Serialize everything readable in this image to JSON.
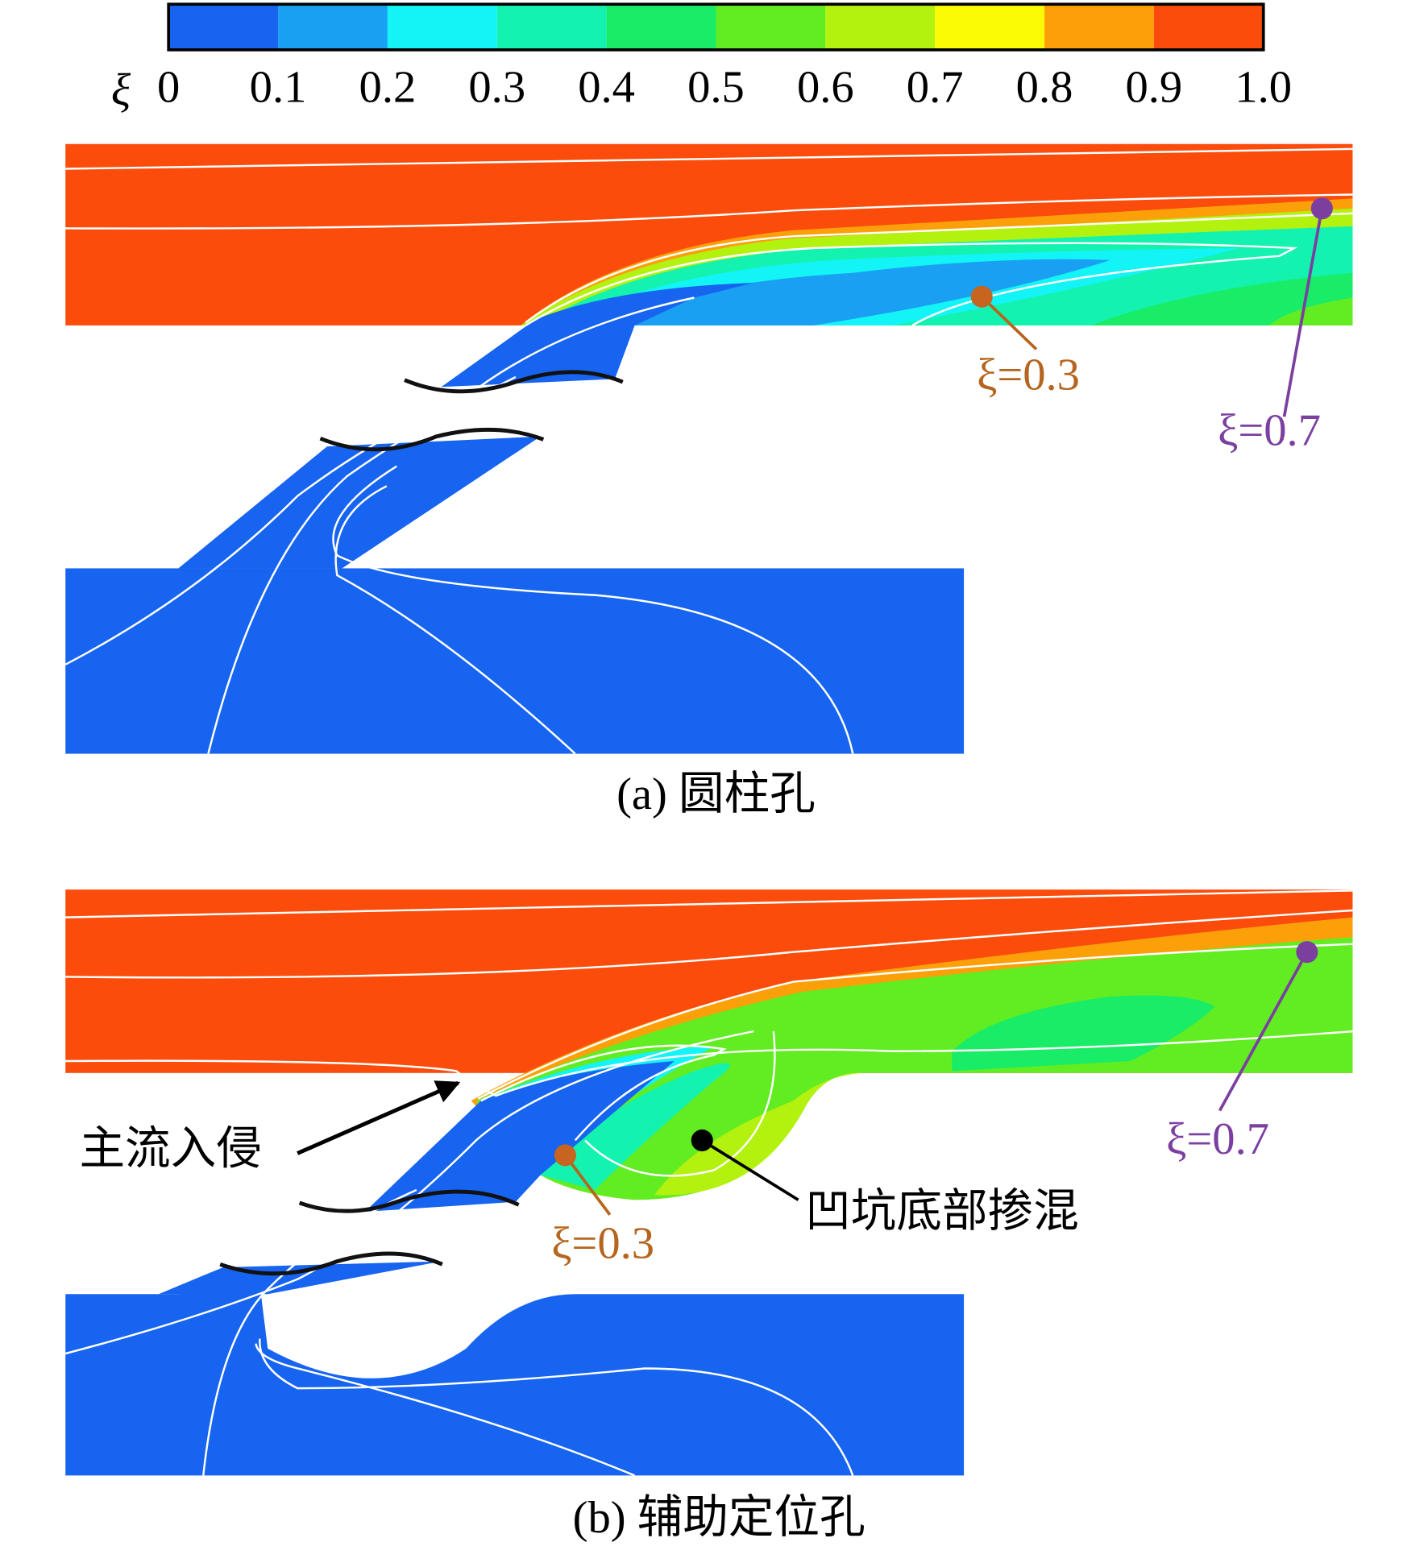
{
  "colorbar": {
    "symbol": "ξ",
    "ticks": [
      0,
      0.1,
      0.2,
      0.3,
      0.4,
      0.5,
      0.6,
      0.7,
      0.8,
      0.9,
      {
        "value": 1,
        "label": "1.0"
      }
    ],
    "colors": [
      "#1764f0",
      "#1aa0f2",
      "#13f4f6",
      "#14f2b0",
      "#19ec66",
      "#62ec22",
      "#b2f20e",
      "#fbfb06",
      "#fca00a",
      "#fc4c0c"
    ]
  },
  "panels": [
    {
      "caption": "(a) 圆柱孔",
      "annotations": {
        "contour_low": "ξ=0.3",
        "contour_high": "ξ=0.7"
      }
    },
    {
      "caption": "(b) 辅助定位孔",
      "annotations": {
        "intrusion": "主流入侵",
        "contour_low": "ξ=0.3",
        "contour_high": "ξ=0.7",
        "mixing": "凹坑底部掺混"
      }
    }
  ]
}
